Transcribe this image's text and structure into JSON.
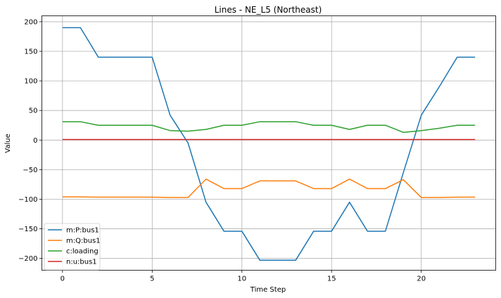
{
  "chart_data": {
    "type": "line",
    "title": "Lines - NE_L5 (Northeast)",
    "xlabel": "Time Step",
    "ylabel": "Value",
    "xlim": [
      -1.15,
      24.15
    ],
    "ylim": [
      -220,
      210
    ],
    "xticks": [
      0,
      5,
      10,
      15,
      20
    ],
    "yticks": [
      200,
      150,
      100,
      50,
      0,
      -50,
      -100,
      -150,
      -200
    ],
    "grid": true,
    "legend_position": "lower-left",
    "x": [
      0,
      1,
      2,
      3,
      4,
      5,
      6,
      7,
      8,
      9,
      10,
      11,
      12,
      13,
      14,
      15,
      16,
      17,
      18,
      19,
      20,
      21,
      22,
      23
    ],
    "series": [
      {
        "name": "m:P:bus1",
        "color": "#1f77b4",
        "values": [
          190,
          190,
          140,
          140,
          140,
          140,
          42,
          -5,
          -105,
          -154,
          -154,
          -203,
          -203,
          -203,
          -154,
          -154,
          -105,
          -154,
          -154,
          -55,
          42,
          90,
          140,
          140
        ]
      },
      {
        "name": "m:Q:bus1",
        "color": "#ff7f0e",
        "values": [
          -96,
          -96,
          -96.5,
          -96.5,
          -96.5,
          -96.5,
          -97,
          -97,
          -66,
          -82,
          -82,
          -69,
          -69,
          -69,
          -82,
          -82,
          -66,
          -82,
          -82,
          -67,
          -97,
          -97,
          -96.5,
          -96.5
        ]
      },
      {
        "name": "c:loading",
        "color": "#2ca02c",
        "values": [
          31,
          31,
          25,
          25,
          25,
          25,
          16,
          15,
          18,
          25,
          25,
          31,
          31,
          31,
          25,
          25,
          18,
          25,
          25,
          13,
          16,
          20,
          25,
          25
        ]
      },
      {
        "name": "n:u:bus1",
        "color": "#d62728",
        "values": [
          1,
          1,
          1,
          1,
          1,
          1,
          1,
          1,
          1,
          1,
          1,
          1,
          1,
          1,
          1,
          1,
          1,
          1,
          1,
          1,
          1,
          1,
          1,
          1
        ]
      }
    ]
  }
}
